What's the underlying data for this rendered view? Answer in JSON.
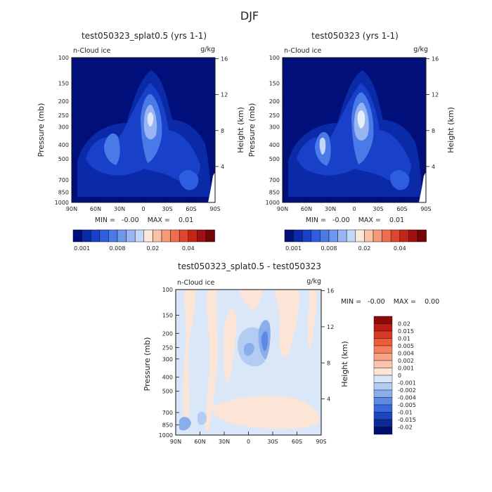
{
  "page_title": "DJF",
  "chart_data": [
    {
      "type": "heatmap",
      "title": "test050323_splat0.5 (yrs 1-1)",
      "variable": "n-Cloud ice",
      "units": "g/kg",
      "ylabel": "Pressure (mb)",
      "ylabel_right": "Height (km)",
      "x_ticks": [
        "90N",
        "60N",
        "30N",
        "0",
        "30S",
        "60S",
        "90S"
      ],
      "y_ticks": [
        "100",
        "150",
        "200",
        "250",
        "300",
        "400",
        "500",
        "700",
        "850",
        "1000"
      ],
      "height_ticks": [
        "16",
        "12",
        "8",
        "4"
      ],
      "stats_text": "MIN =   -0.00    MAX =    0.01",
      "colorbar_labels": [
        "0.001",
        "0.008",
        "0.02",
        "0.04"
      ],
      "colorbar_colors": [
        "#000f7a",
        "#0b2aa8",
        "#1840c8",
        "#2e5ee0",
        "#4a7ae8",
        "#6f97ee",
        "#98b4f2",
        "#c5d7f8",
        "#fde9dc",
        "#fac3a6",
        "#f59a78",
        "#ee6e4f",
        "#e04530",
        "#c42418",
        "#a01010",
        "#760505"
      ]
    },
    {
      "type": "heatmap",
      "title": "test050323 (yrs 1-1)",
      "variable": "n-Cloud ice",
      "units": "g/kg",
      "ylabel": "Pressure (mb)",
      "ylabel_right": "Height (km)",
      "x_ticks": [
        "90N",
        "60N",
        "30N",
        "0",
        "30S",
        "60S",
        "90S"
      ],
      "y_ticks": [
        "100",
        "150",
        "200",
        "250",
        "300",
        "400",
        "500",
        "700",
        "850",
        "1000"
      ],
      "height_ticks": [
        "16",
        "12",
        "8",
        "4"
      ],
      "stats_text": "MIN =   -0.00    MAX =    0.01",
      "colorbar_labels": [
        "0.001",
        "0.008",
        "0.02",
        "0.04"
      ],
      "colorbar_colors": [
        "#000f7a",
        "#0b2aa8",
        "#1840c8",
        "#2e5ee0",
        "#4a7ae8",
        "#6f97ee",
        "#98b4f2",
        "#c5d7f8",
        "#fde9dc",
        "#fac3a6",
        "#f59a78",
        "#ee6e4f",
        "#e04530",
        "#c42418",
        "#a01010",
        "#760505"
      ]
    },
    {
      "type": "heatmap",
      "title": "test050323_splat0.5 - test050323",
      "variable": "n-Cloud ice",
      "units": "g/kg",
      "ylabel": "Pressure (mb)",
      "ylabel_right": "Height (km)",
      "x_ticks": [
        "90N",
        "60N",
        "30N",
        "0",
        "30S",
        "60S",
        "90S"
      ],
      "y_ticks": [
        "100",
        "150",
        "200",
        "250",
        "300",
        "400",
        "500",
        "700",
        "850",
        "1000"
      ],
      "height_ticks": [
        "16",
        "12",
        "8",
        "4"
      ],
      "stats_text": "MIN =   -0.00    MAX =    0.00",
      "colorbar_labels": [
        "0.02",
        "0.015",
        "0.01",
        "0.005",
        "0.004",
        "0.002",
        "0.001",
        "0",
        "-0.001",
        "-0.002",
        "-0.004",
        "-0.005",
        "-0.01",
        "-0.015",
        "-0.02"
      ],
      "colorbar_colors": [
        "#8e0a0a",
        "#b81c14",
        "#d63a24",
        "#ee5a3c",
        "#f58060",
        "#f8a382",
        "#fac6ab",
        "#fde6d6",
        "#d7e6f8",
        "#b3ccf2",
        "#8aaeec",
        "#5f8ae4",
        "#3868da",
        "#1c45c2",
        "#0b2a98",
        "#001070"
      ]
    }
  ]
}
